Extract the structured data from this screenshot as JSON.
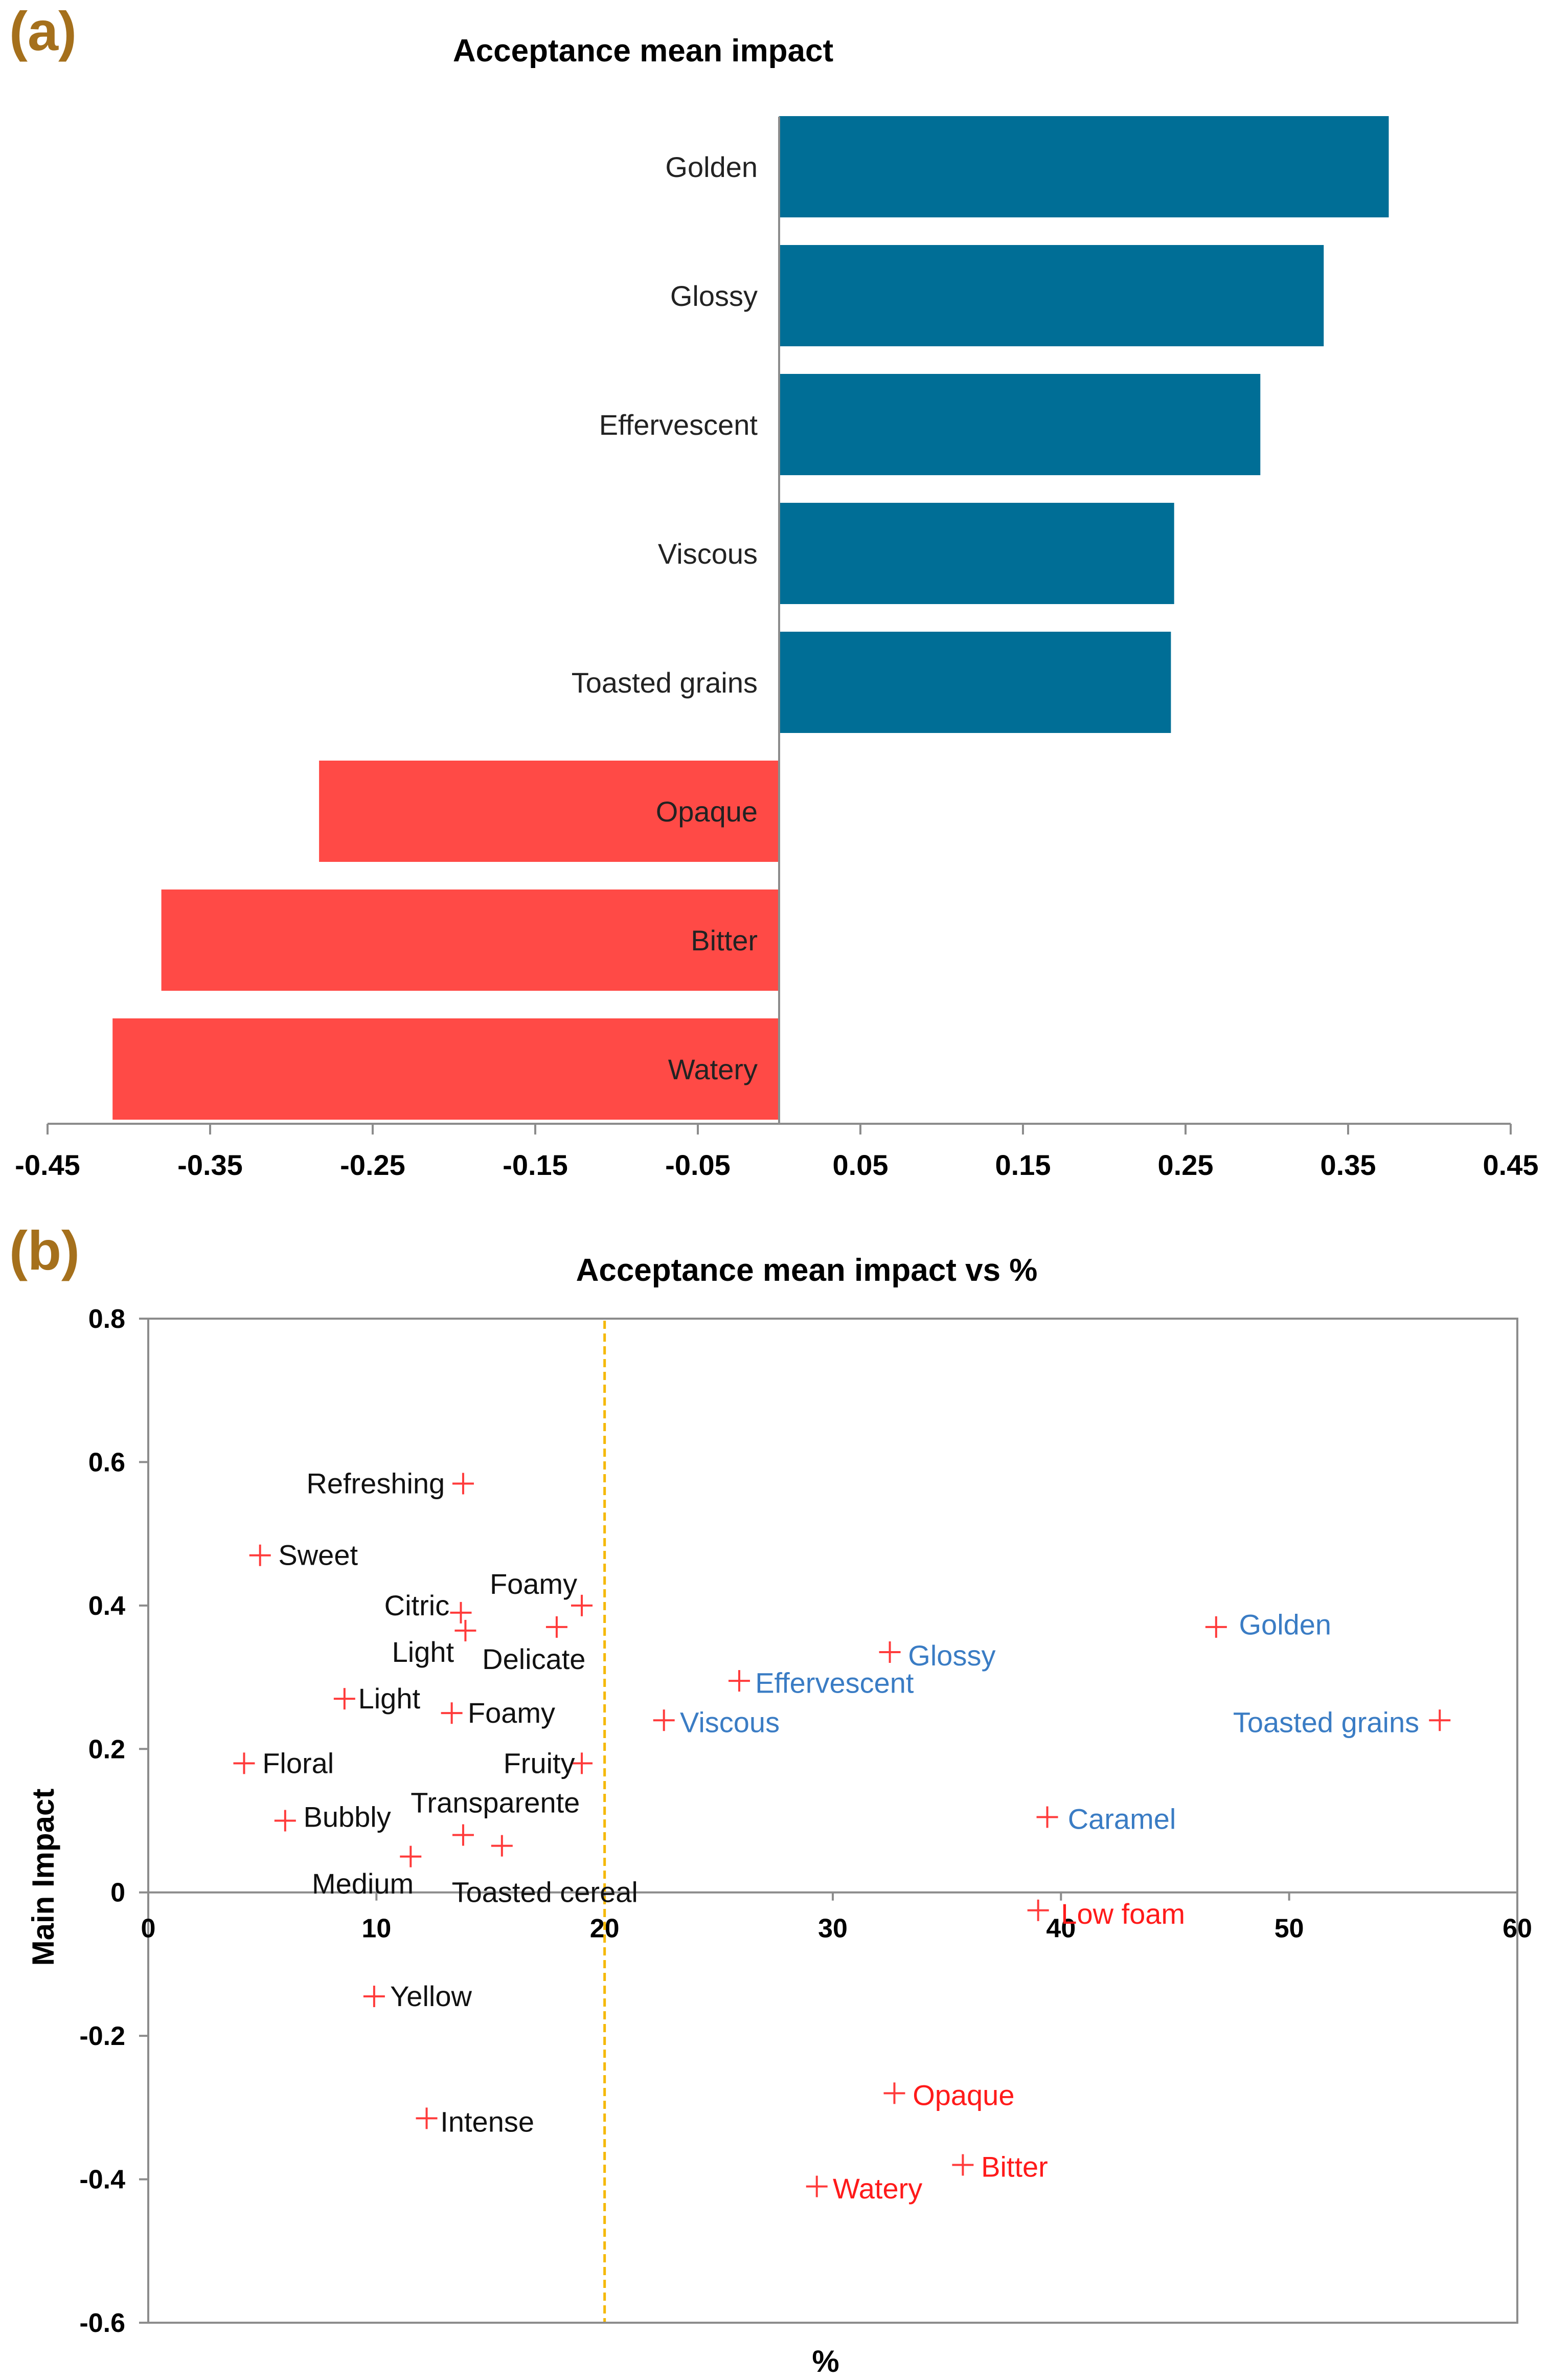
{
  "panel_a": {
    "label": "(a)",
    "chart_data": {
      "type": "bar",
      "orientation": "horizontal",
      "title": "Acceptance mean impact",
      "categories": [
        "Golden",
        "Glossy",
        "Effervescent",
        "Viscous",
        "Toasted grains",
        "Opaque",
        "Bitter",
        "Watery"
      ],
      "values": [
        0.375,
        0.335,
        0.296,
        0.243,
        0.241,
        -0.283,
        -0.38,
        -0.41
      ],
      "colors": [
        "#006e96",
        "#006e96",
        "#006e96",
        "#006e96",
        "#006e96",
        "#ff4a46",
        "#ff4a46",
        "#ff4a46"
      ],
      "xlim": [
        -0.45,
        0.45
      ],
      "xticks": [
        -0.45,
        -0.35,
        -0.25,
        -0.15,
        -0.05,
        0.05,
        0.15,
        0.25,
        0.35,
        0.45
      ],
      "xtick_labels": [
        "-0.45",
        "-0.35",
        "-0.25",
        "-0.15",
        "-0.05",
        "0.05",
        "0.15",
        "0.25",
        "0.35",
        "0.45"
      ]
    }
  },
  "panel_b": {
    "label": "(b)",
    "chart_data": {
      "type": "scatter",
      "title": "Acceptance mean impact vs %",
      "xlabel": "%",
      "ylabel": "Main Impact",
      "xlim": [
        0,
        60
      ],
      "ylim": [
        -0.6,
        0.8
      ],
      "xticks": [
        0,
        10,
        20,
        30,
        40,
        50,
        60
      ],
      "xtick_labels": [
        "0",
        "10",
        "20",
        "30",
        "40",
        "50",
        "60"
      ],
      "yticks": [
        -0.6,
        -0.4,
        -0.2,
        0,
        0.2,
        0.4,
        0.6,
        0.8
      ],
      "ytick_labels": [
        "-0.6",
        "-0.4",
        "-0.2",
        "0",
        "0.2",
        "0.4",
        "0.6",
        "0.8"
      ],
      "threshold_x": 20,
      "threshold_color": "#f5b800",
      "marker_color": "#ff3b3b",
      "points": [
        {
          "name": "Refreshing",
          "x": 13.8,
          "y": 0.57,
          "color": "#111111",
          "anchor": "end",
          "dx": -0.8,
          "dy": 0
        },
        {
          "name": "Sweet",
          "x": 4.9,
          "y": 0.47,
          "color": "#111111",
          "anchor": "start",
          "dx": 0.8,
          "dy": 0
        },
        {
          "name": "Citric",
          "x": 13.7,
          "y": 0.39,
          "color": "#111111",
          "anchor": "end",
          "dx": -0.5,
          "dy": 0.01
        },
        {
          "name": "Foamy",
          "x": 19.0,
          "y": 0.4,
          "color": "#111111",
          "anchor": "end",
          "dx": -0.2,
          "dy": 0.03
        },
        {
          "name": "Light",
          "x": 13.9,
          "y": 0.365,
          "color": "#111111",
          "anchor": "end",
          "dx": -0.5,
          "dy": -0.03
        },
        {
          "name": "Delicate",
          "x": 17.9,
          "y": 0.37,
          "color": "#111111",
          "anchor": "middle",
          "dx": -1.0,
          "dy": -0.045
        },
        {
          "name": "Light",
          "x": 8.6,
          "y": 0.27,
          "color": "#111111",
          "anchor": "start",
          "dx": 0.6,
          "dy": 0
        },
        {
          "name": "Foamy",
          "x": 13.3,
          "y": 0.25,
          "color": "#111111",
          "anchor": "start",
          "dx": 0.7,
          "dy": 0
        },
        {
          "name": "Floral",
          "x": 4.2,
          "y": 0.18,
          "color": "#111111",
          "anchor": "start",
          "dx": 0.8,
          "dy": 0
        },
        {
          "name": "Fruity",
          "x": 19.0,
          "y": 0.18,
          "color": "#111111",
          "anchor": "end",
          "dx": -0.3,
          "dy": 0
        },
        {
          "name": "Bubbly",
          "x": 6.0,
          "y": 0.1,
          "color": "#111111",
          "anchor": "start",
          "dx": 0.8,
          "dy": 0.005
        },
        {
          "name": "Transparente",
          "x": 13.8,
          "y": 0.08,
          "color": "#111111",
          "anchor": "start",
          "dx": -2.3,
          "dy": 0.045
        },
        {
          "name": "Toasted cereal",
          "x": 15.5,
          "y": 0.065,
          "color": "#111111",
          "anchor": "start",
          "dx": -2.2,
          "dy": -0.065
        },
        {
          "name": "Medium",
          "x": 11.5,
          "y": 0.05,
          "color": "#111111",
          "anchor": "middle",
          "dx": -2.1,
          "dy": -0.038
        },
        {
          "name": "Yellow",
          "x": 9.9,
          "y": -0.145,
          "color": "#111111",
          "anchor": "start",
          "dx": 0.7,
          "dy": 0
        },
        {
          "name": "Intense",
          "x": 12.2,
          "y": -0.315,
          "color": "#111111",
          "anchor": "start",
          "dx": 0.6,
          "dy": -0.005
        },
        {
          "name": "Glossy",
          "x": 32.5,
          "y": 0.335,
          "color": "#3a7cc4",
          "anchor": "start",
          "dx": 0.8,
          "dy": -0.005
        },
        {
          "name": "Effervescent",
          "x": 25.9,
          "y": 0.295,
          "color": "#3a7cc4",
          "anchor": "start",
          "dx": 0.7,
          "dy": -0.003
        },
        {
          "name": "Viscous",
          "x": 22.6,
          "y": 0.24,
          "color": "#3a7cc4",
          "anchor": "start",
          "dx": 0.7,
          "dy": -0.003
        },
        {
          "name": "Golden",
          "x": 46.8,
          "y": 0.37,
          "color": "#3a7cc4",
          "anchor": "start",
          "dx": 1.0,
          "dy": 0.003
        },
        {
          "name": "Toasted grains",
          "x": 56.6,
          "y": 0.24,
          "color": "#3a7cc4",
          "anchor": "end",
          "dx": -0.9,
          "dy": -0.003
        },
        {
          "name": "Caramel",
          "x": 39.4,
          "y": 0.105,
          "color": "#3a7cc4",
          "anchor": "start",
          "dx": 0.9,
          "dy": -0.003
        },
        {
          "name": "Low foam",
          "x": 39.0,
          "y": -0.025,
          "color": "#ff1a1a",
          "anchor": "start",
          "dx": 1.0,
          "dy": -0.005
        },
        {
          "name": "Opaque",
          "x": 32.7,
          "y": -0.28,
          "color": "#ff1a1a",
          "anchor": "start",
          "dx": 0.8,
          "dy": -0.003
        },
        {
          "name": "Bitter",
          "x": 35.7,
          "y": -0.38,
          "color": "#ff1a1a",
          "anchor": "start",
          "dx": 0.8,
          "dy": -0.003
        },
        {
          "name": "Watery",
          "x": 29.3,
          "y": -0.41,
          "color": "#ff1a1a",
          "anchor": "start",
          "dx": 0.7,
          "dy": -0.003
        }
      ]
    }
  }
}
